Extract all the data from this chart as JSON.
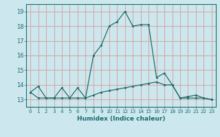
{
  "xlabel": "Humidex (Indice chaleur)",
  "bg_color": "#cce8ee",
  "grid_color_h": "#e8c8c8",
  "grid_color_v": "#e8c8c8",
  "line_color": "#1a6b6b",
  "xlim": [
    -0.5,
    23.5
  ],
  "ylim": [
    12.5,
    19.5
  ],
  "yticks": [
    13,
    14,
    15,
    16,
    17,
    18,
    19
  ],
  "xticks": [
    0,
    1,
    2,
    3,
    4,
    5,
    6,
    7,
    8,
    9,
    10,
    11,
    12,
    13,
    14,
    15,
    16,
    17,
    18,
    19,
    20,
    21,
    22,
    23
  ],
  "line1_x": [
    0,
    1,
    2,
    3,
    4,
    5,
    6,
    7,
    8,
    9,
    10,
    11,
    12,
    13,
    14,
    15,
    16,
    17,
    18,
    19,
    20,
    21,
    22,
    23
  ],
  "line1_y": [
    13.5,
    13.9,
    13.1,
    13.1,
    13.8,
    13.1,
    13.8,
    13.1,
    16.0,
    16.7,
    18.0,
    18.3,
    19.0,
    18.0,
    18.1,
    18.1,
    14.5,
    14.8,
    14.0,
    13.1,
    13.2,
    13.3,
    13.1,
    13.0
  ],
  "line2_x": [
    0,
    1,
    2,
    3,
    4,
    5,
    6,
    7,
    8,
    9,
    10,
    11,
    12,
    13,
    14,
    15,
    16,
    17,
    18,
    19,
    20,
    21,
    22,
    23
  ],
  "line2_y": [
    13.5,
    13.1,
    13.1,
    13.1,
    13.1,
    13.1,
    13.1,
    13.1,
    13.3,
    13.5,
    13.6,
    13.7,
    13.8,
    13.9,
    14.0,
    14.1,
    14.2,
    14.0,
    14.0,
    13.1,
    13.1,
    13.1,
    13.1,
    13.0
  ]
}
